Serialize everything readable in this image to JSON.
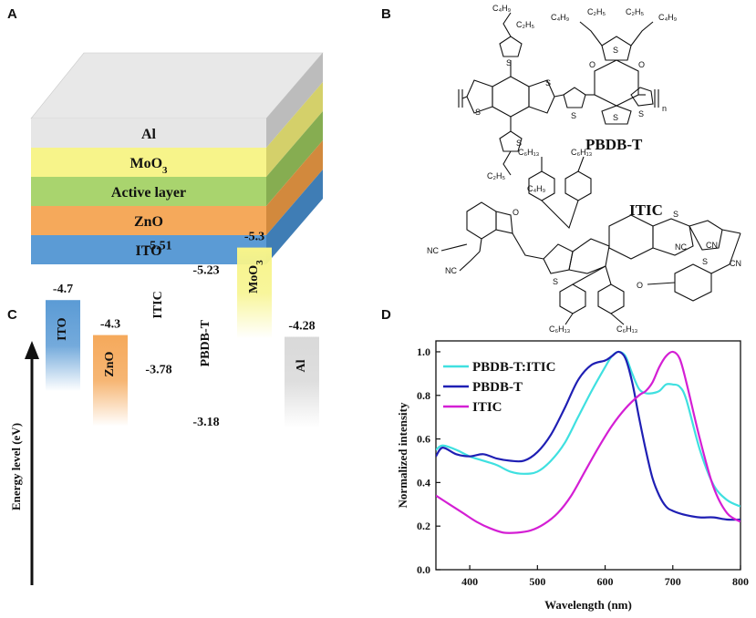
{
  "panels": {
    "a": "A",
    "b": "B",
    "c": "C",
    "d": "D"
  },
  "device": {
    "layers": [
      {
        "label": "Al",
        "color": "#e6e6e6",
        "side": "#bcbcbc"
      },
      {
        "label": "MoO",
        "sub": "3",
        "color": "#f7f48a",
        "side": "#d4d06a"
      },
      {
        "label": "Active layer",
        "color": "#a9d46e",
        "side": "#86ad51"
      },
      {
        "label": "ZnO",
        "color": "#f5a95b",
        "side": "#d2893d"
      },
      {
        "label": "ITO",
        "color": "#5b9bd5",
        "side": "#3f7db5"
      }
    ]
  },
  "molecules": {
    "donor_name": "PBDB-T",
    "acceptor_name": "ITIC",
    "c4h9": "C₄H₉",
    "c2h5": "C₂H₅",
    "c6h13": "C₆H₁₃",
    "s": "S",
    "o": "O",
    "nc": "NC",
    "cn": "CN",
    "n": "n"
  },
  "energy": {
    "axis_title": "Energy level (eV)",
    "bars": [
      {
        "label": "ITO",
        "top": "-4.7",
        "color": "#5b9bd5"
      },
      {
        "label": "ZnO",
        "top": "-4.3",
        "color": "#f5a95b"
      },
      {
        "label": "ITIC",
        "top": "-3.78",
        "bottom": "-5.51",
        "color": "#d08a8a"
      },
      {
        "label": "PBDB-T",
        "top": "-3.18",
        "bottom": "-5.23",
        "color": "#4f81c7"
      },
      {
        "label": "MoO",
        "sub": "3",
        "top": "-5.3",
        "color": "#f7f48a"
      },
      {
        "label": "Al",
        "top": "-4.28",
        "color": "#d9d9d9"
      }
    ]
  },
  "chart_data": {
    "type": "line",
    "title": "",
    "xlabel": "Wavelength (nm)",
    "ylabel": "Normalized intensity",
    "xlim": [
      350,
      800
    ],
    "ylim": [
      0.0,
      1.05
    ],
    "xticks": [
      400,
      500,
      600,
      700,
      800
    ],
    "yticks": [
      0.0,
      0.2,
      0.4,
      0.6,
      0.8,
      1.0
    ],
    "series": [
      {
        "name": "PBDB-T:ITIC",
        "color": "#3fe0e0",
        "x": [
          350,
          360,
          380,
          400,
          420,
          440,
          460,
          480,
          500,
          520,
          540,
          560,
          580,
          600,
          610,
          620,
          630,
          640,
          650,
          660,
          670,
          680,
          690,
          700,
          710,
          720,
          740,
          760,
          780,
          800
        ],
        "y": [
          0.55,
          0.57,
          0.55,
          0.52,
          0.5,
          0.48,
          0.45,
          0.44,
          0.45,
          0.5,
          0.58,
          0.7,
          0.82,
          0.93,
          0.98,
          1.0,
          0.98,
          0.9,
          0.83,
          0.81,
          0.81,
          0.82,
          0.85,
          0.85,
          0.84,
          0.78,
          0.55,
          0.39,
          0.32,
          0.29
        ]
      },
      {
        "name": "PBDB-T",
        "color": "#1f1fb4",
        "x": [
          350,
          360,
          380,
          400,
          420,
          440,
          460,
          480,
          500,
          520,
          540,
          560,
          580,
          600,
          610,
          620,
          630,
          640,
          650,
          660,
          670,
          680,
          690,
          700,
          720,
          740,
          760,
          780,
          800
        ],
        "y": [
          0.52,
          0.56,
          0.53,
          0.52,
          0.53,
          0.51,
          0.5,
          0.5,
          0.54,
          0.62,
          0.74,
          0.87,
          0.94,
          0.96,
          0.98,
          1.0,
          0.97,
          0.86,
          0.7,
          0.55,
          0.42,
          0.34,
          0.29,
          0.27,
          0.25,
          0.24,
          0.24,
          0.23,
          0.23
        ]
      },
      {
        "name": "ITIC",
        "color": "#d41fd4",
        "x": [
          350,
          370,
          390,
          410,
          430,
          450,
          470,
          490,
          510,
          530,
          550,
          570,
          590,
          610,
          630,
          650,
          660,
          670,
          680,
          690,
          700,
          710,
          720,
          740,
          760,
          780,
          800
        ],
        "y": [
          0.34,
          0.3,
          0.26,
          0.22,
          0.19,
          0.17,
          0.17,
          0.18,
          0.21,
          0.26,
          0.34,
          0.45,
          0.56,
          0.66,
          0.74,
          0.8,
          0.82,
          0.86,
          0.93,
          0.98,
          1.0,
          0.97,
          0.86,
          0.6,
          0.38,
          0.26,
          0.22
        ]
      }
    ]
  }
}
